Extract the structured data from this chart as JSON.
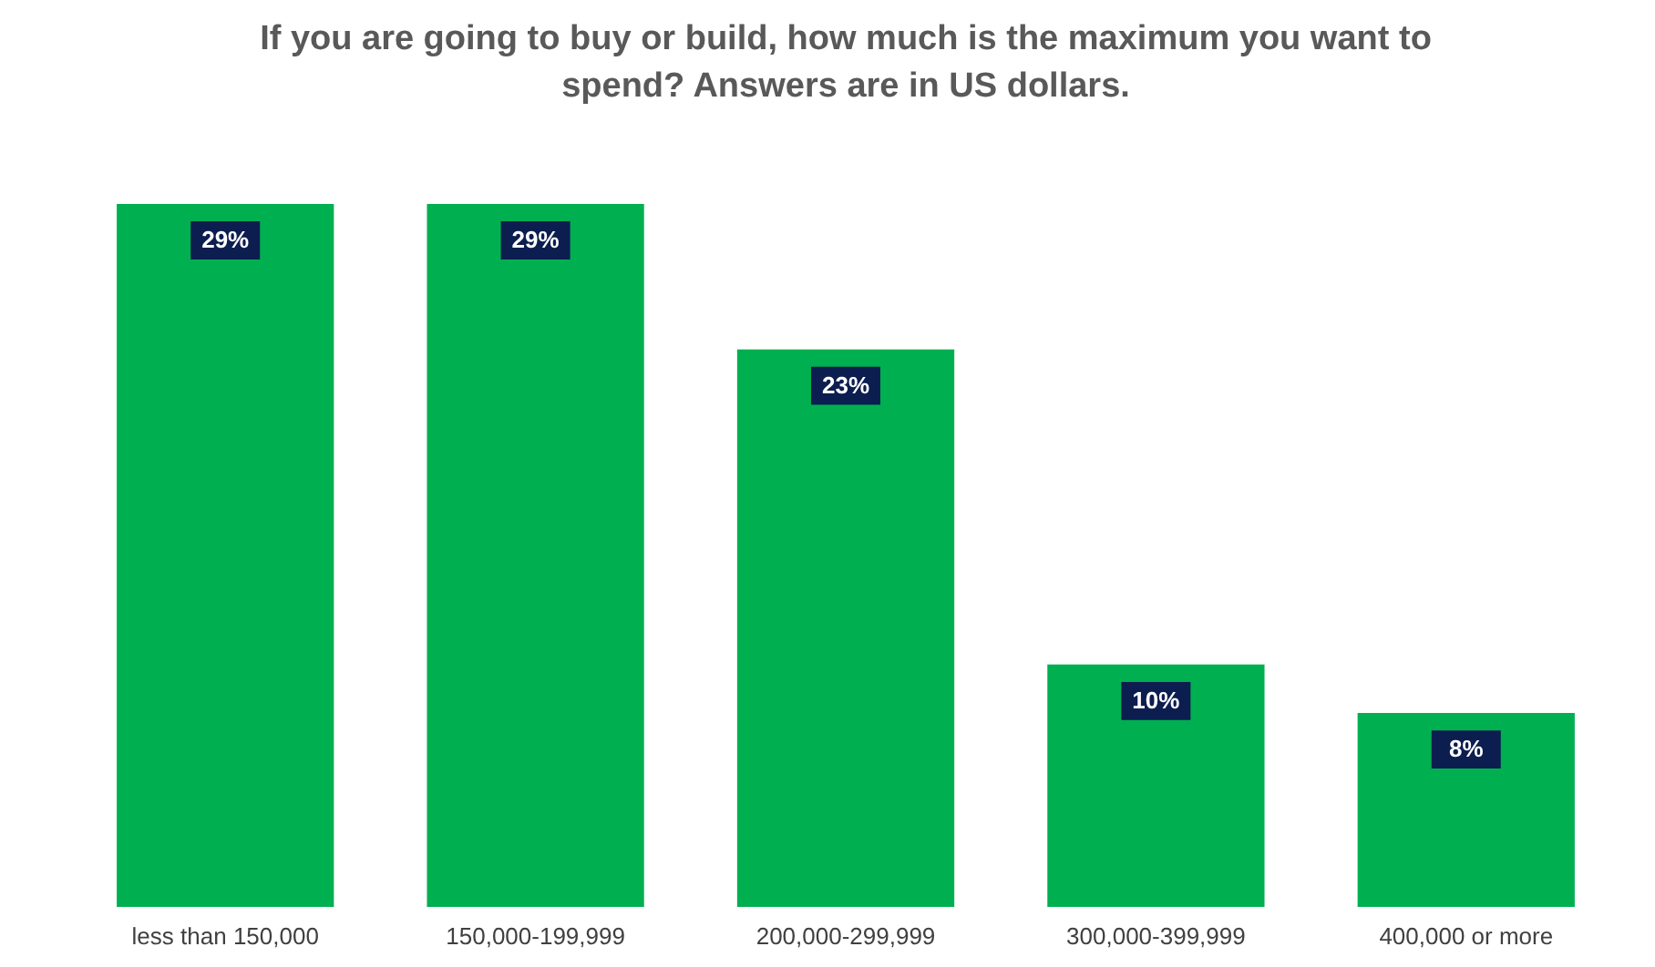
{
  "chart_data": {
    "type": "bar",
    "title": "If you are going to buy or build, how much is the maximum you want to spend? Answers are in US dollars.",
    "categories": [
      "less than 150,000",
      "150,000-199,999",
      "200,000-299,999",
      "300,000-399,999",
      "400,000 or more"
    ],
    "values": [
      29,
      29,
      23,
      10,
      8
    ],
    "value_labels": [
      "29%",
      "29%",
      "23%",
      "10%",
      "8%"
    ],
    "color": "#00b050"
  }
}
